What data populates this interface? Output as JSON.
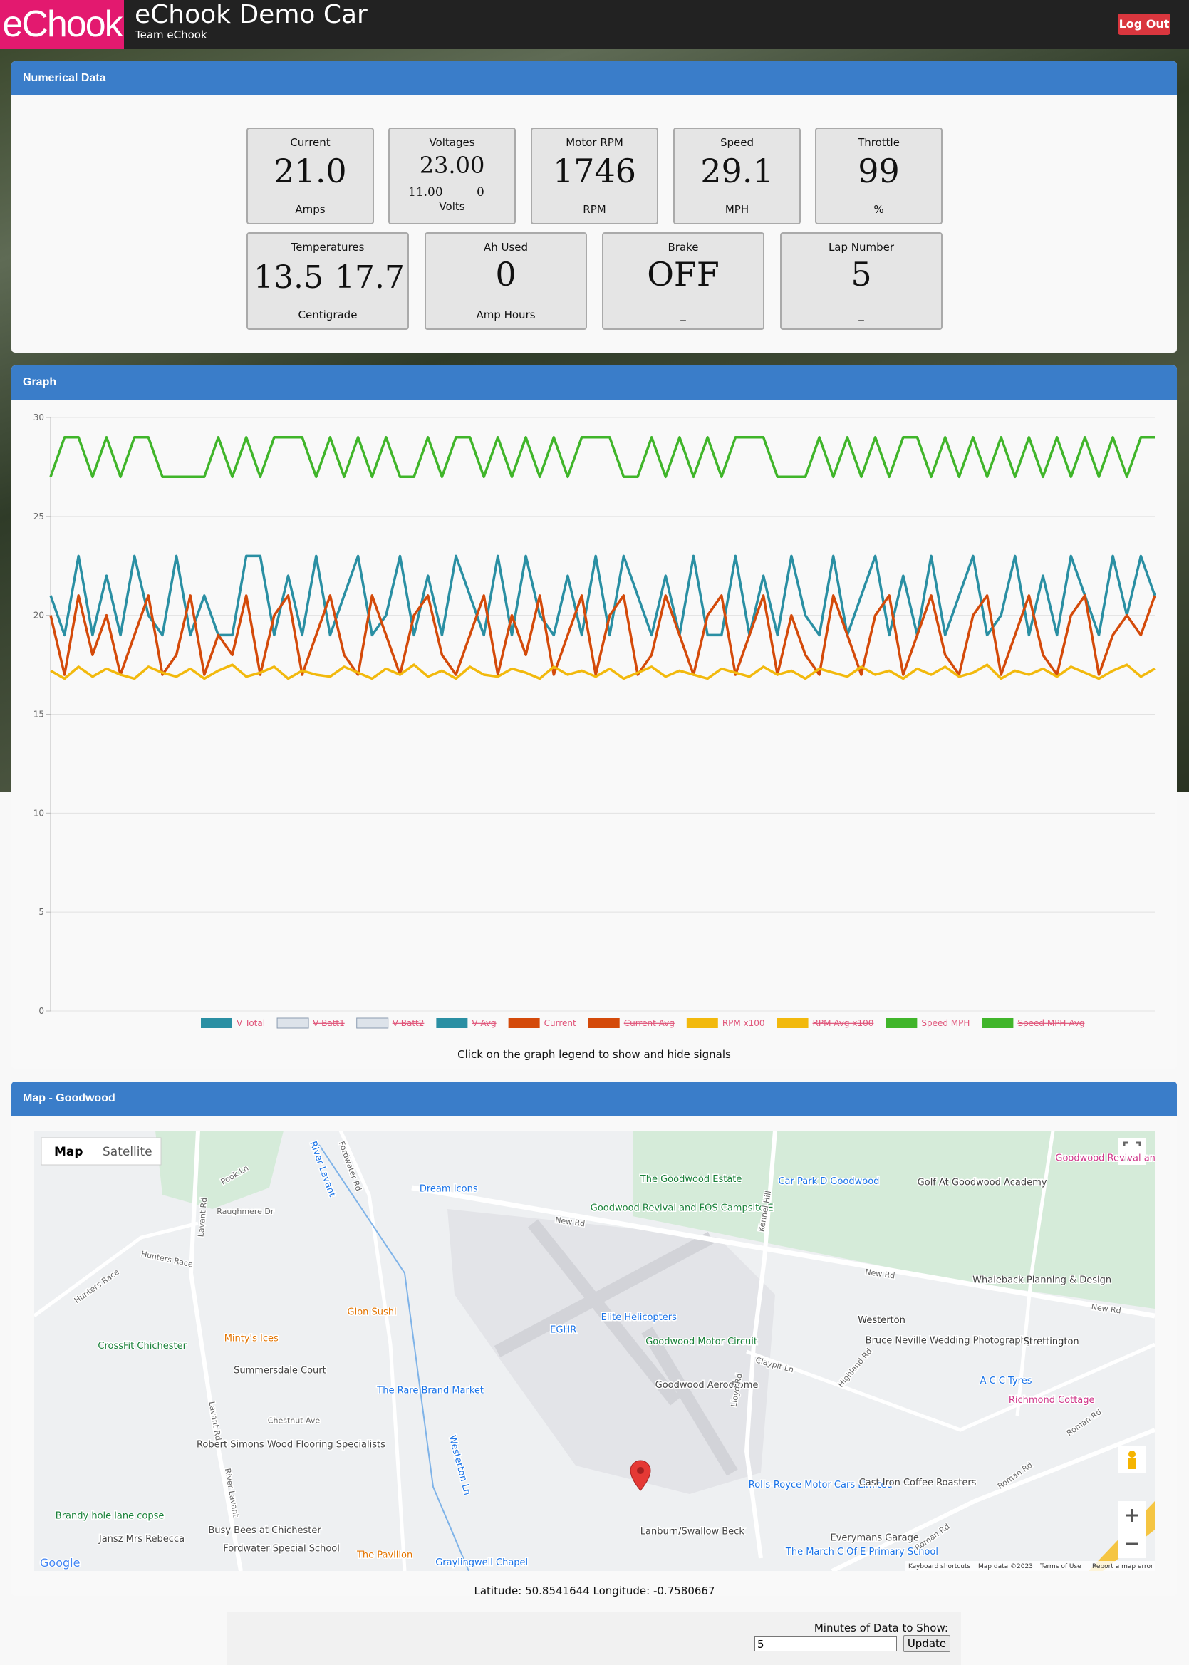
{
  "header": {
    "logo": "eChook",
    "title": "eChook Demo Car",
    "team": "Team eChook",
    "logout": "Log Out"
  },
  "numerical": {
    "title": "Numerical Data",
    "cards": [
      {
        "label": "Current",
        "value": "21.0",
        "unit": "Amps"
      },
      {
        "label": "Voltages",
        "value": "23.00",
        "sub": [
          "11.00",
          "0"
        ],
        "unit": "Volts"
      },
      {
        "label": "Motor RPM",
        "value": "1746",
        "unit": "RPM"
      },
      {
        "label": "Speed",
        "value": "29.1",
        "unit": "MPH"
      },
      {
        "label": "Throttle",
        "value": "99",
        "unit": "%"
      },
      {
        "label": "Temperatures",
        "values": [
          "13.5",
          "17.7"
        ],
        "unit": "Centigrade"
      },
      {
        "label": "Ah Used",
        "value": "0",
        "unit": "Amp Hours"
      },
      {
        "label": "Brake",
        "value": "OFF",
        "unit": "_"
      },
      {
        "label": "Lap Number",
        "value": "5",
        "unit": "_"
      }
    ]
  },
  "graph": {
    "title": "Graph",
    "type": "line",
    "ylim": [
      0,
      30
    ],
    "yticks": [
      0,
      5,
      10,
      15,
      20,
      25,
      30
    ],
    "grid": true,
    "series": [
      {
        "name": "V Total",
        "color": "#2a8fa3",
        "hidden": false,
        "values": [
          21,
          19,
          23,
          19,
          22,
          19,
          23,
          20,
          19,
          23,
          19,
          21,
          19,
          19,
          23,
          23,
          19,
          22,
          19,
          23,
          19,
          21,
          23,
          19,
          20,
          23,
          19,
          22,
          19,
          23,
          21,
          19,
          23,
          19,
          23,
          20,
          19,
          22,
          19,
          23,
          19,
          23,
          21,
          19,
          22,
          19,
          23,
          19,
          19,
          23,
          19,
          22,
          19,
          23,
          20,
          19,
          23,
          19,
          21,
          23,
          19,
          22,
          19,
          23,
          19,
          21,
          23,
          19,
          20,
          23,
          19,
          22,
          19,
          23,
          21,
          19,
          23,
          20,
          23,
          21
        ]
      },
      {
        "name": "V Batt1",
        "color": "#dde3ea",
        "hidden": true
      },
      {
        "name": "V Batt2",
        "color": "#dde3ea",
        "hidden": true
      },
      {
        "name": "V Avg",
        "color": "#2a8fa3",
        "hidden": true
      },
      {
        "name": "Current",
        "color": "#d44a0a",
        "hidden": false,
        "values": [
          20,
          17,
          21,
          18,
          20,
          17,
          19,
          21,
          17,
          18,
          21,
          17,
          19,
          18,
          21,
          17,
          20,
          21,
          17,
          19,
          21,
          18,
          17,
          21,
          19,
          17,
          20,
          21,
          18,
          17,
          19,
          21,
          17,
          20,
          18,
          21,
          17,
          19,
          21,
          17,
          20,
          21,
          17,
          18,
          21,
          19,
          17,
          20,
          21,
          17,
          19,
          21,
          17,
          20,
          18,
          17,
          21,
          19,
          17,
          20,
          21,
          17,
          19,
          21,
          18,
          17,
          20,
          21,
          17,
          19,
          21,
          18,
          17,
          20,
          21,
          17,
          19,
          20,
          19,
          21
        ]
      },
      {
        "name": "Current Avg",
        "color": "#d44a0a",
        "hidden": true
      },
      {
        "name": "RPM x100",
        "color": "#f2b90d",
        "hidden": false,
        "values": [
          17.2,
          16.8,
          17.4,
          16.9,
          17.3,
          17.0,
          16.8,
          17.4,
          17.1,
          16.9,
          17.3,
          16.8,
          17.2,
          17.5,
          16.9,
          17.1,
          17.4,
          16.8,
          17.2,
          17.0,
          16.9,
          17.4,
          17.1,
          16.8,
          17.3,
          17.0,
          17.5,
          16.9,
          17.2,
          16.8,
          17.4,
          17.0,
          16.9,
          17.3,
          17.1,
          16.8,
          17.4,
          17.0,
          17.2,
          16.9,
          17.3,
          16.8,
          17.1,
          17.4,
          16.9,
          17.2,
          17.0,
          16.8,
          17.3,
          17.1,
          16.9,
          17.4,
          17.0,
          17.2,
          16.8,
          17.3,
          17.1,
          16.9,
          17.4,
          17.0,
          17.2,
          16.8,
          17.3,
          17.0,
          17.4,
          16.9,
          17.1,
          17.5,
          16.8,
          17.2,
          17.0,
          17.3,
          16.9,
          17.4,
          17.1,
          16.8,
          17.2,
          17.5,
          16.9,
          17.3
        ]
      },
      {
        "name": "RPM Avg x100",
        "color": "#f2b90d",
        "hidden": true
      },
      {
        "name": "Speed MPH",
        "color": "#40b52a",
        "hidden": false,
        "values": [
          27,
          29,
          29,
          27,
          29,
          27,
          29,
          29,
          27,
          27,
          27,
          27,
          29,
          27,
          29,
          27,
          29,
          29,
          29,
          27,
          29,
          27,
          29,
          27,
          29,
          27,
          27,
          29,
          27,
          29,
          29,
          27,
          29,
          27,
          29,
          27,
          29,
          27,
          29,
          29,
          29,
          27,
          27,
          29,
          27,
          29,
          27,
          29,
          27,
          29,
          29,
          29,
          27,
          27,
          27,
          29,
          27,
          29,
          27,
          29,
          27,
          29,
          29,
          27,
          29,
          27,
          29,
          27,
          29,
          27,
          29,
          27,
          29,
          27,
          29,
          27,
          29,
          27,
          29,
          29
        ]
      },
      {
        "name": "Speed MPH Avg",
        "color": "#40b52a",
        "hidden": true
      }
    ],
    "caption": "Click on the graph legend to show and hide signals"
  },
  "map": {
    "title": "Map - Goodwood",
    "buttons": [
      "Map",
      "Satellite"
    ],
    "labels": [
      "The Goodwood Estate",
      "Car Park D Goodwood",
      "Golf At Goodwood Academy",
      "Dream Icons",
      "Goodwood Revival and FOS Campsite E",
      "New Rd",
      "New Rd",
      "New Rd",
      "Kennel Hill",
      "Fordwater Rd",
      "River Lavant",
      "Pook Ln",
      "Raughmere Dr",
      "Hunters Race",
      "Hunters Race",
      "Lavant Rd",
      "Whaleback Planning & Design",
      "Elite Helicopters",
      "EGHR",
      "Gion Sushi",
      "Goodwood Motor Circuit",
      "Westerton",
      "Bruce Neville Wedding Photography",
      "Strettington",
      "Minty's Ices",
      "CrossFit Chichester",
      "Summersdale Court",
      "Goodwood Aerodrome",
      "The Rare Brand Market",
      "A C C Tyres",
      "Richmond Cottage",
      "Chestnut Ave",
      "Robert Simons Wood Flooring Specialists",
      "Rolls-Royce Motor Cars Limited",
      "Cast Iron Coffee Roasters",
      "Brandy hole lane copse",
      "Busy Bees at Chichester",
      "Lanburn/Swallow Beck",
      "Everymans Garage",
      "Jansz Mrs Rebecca",
      "Fordwater Special School",
      "The March C Of E Primary School",
      "The Pavilion",
      "Graylingwell Chapel",
      "Goodwood Revival and FOS Camp",
      "Roman Rd",
      "Roman Rd",
      "Roman Rd",
      "Lavant Rd",
      "River Lavant",
      "Westerton Ln",
      "Claypit Ln",
      "Highland Rd",
      "Lloyd Rd"
    ],
    "attribution": {
      "logo": "Google",
      "items": [
        "Keyboard shortcuts",
        "Map data ©2023",
        "Terms of Use",
        "Report a map error"
      ]
    }
  },
  "location": {
    "latitude_label": "Latitude:",
    "latitude": "50.8541644",
    "longitude_label": "Longitude:",
    "longitude": "-0.7580667"
  },
  "controls": {
    "minutes_label": "Minutes of Data to Show:",
    "minutes": "5",
    "update": "Update"
  }
}
